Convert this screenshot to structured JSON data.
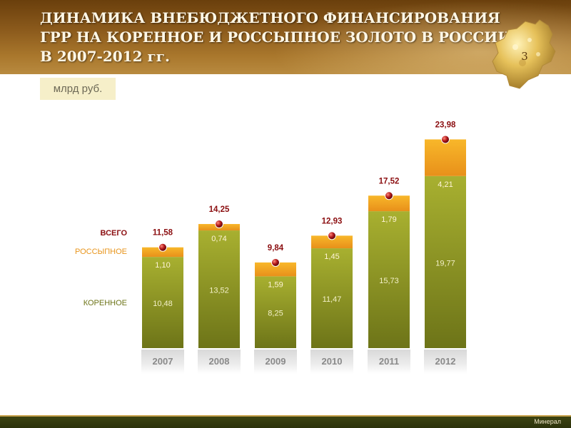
{
  "header": {
    "title_lines": [
      "ДИНАМИКА ВНЕБЮДЖЕТНОГО ФИНАНСИРОВАНИЯ",
      "ГРР НА КОРЕННОЕ И РОССЫПНОЕ ЗОЛОТО В РОССИИ",
      "В 2007-2012 гг."
    ],
    "slide_number": "3"
  },
  "unit_label": "млрд руб.",
  "legend": {
    "total": "ВСЕГО",
    "placer": "РОССЫПНОЕ",
    "primary": "КОРЕННОЕ"
  },
  "footer": {
    "text": "Минерал"
  },
  "colors": {
    "primary_bar": "#9aa22c",
    "placer_bar": "#f2a51a",
    "total_label": "#8b0e10",
    "header_brown": "#8b5a1c",
    "footer_olive": "#3d4412"
  },
  "chart_data": {
    "type": "bar",
    "stacked": true,
    "categories": [
      "2007",
      "2008",
      "2009",
      "2010",
      "2011",
      "2012"
    ],
    "series": [
      {
        "name": "КОРЕННОЕ",
        "values": [
          10.48,
          13.52,
          8.25,
          11.47,
          15.73,
          19.77
        ],
        "labels": [
          "10,48",
          "13,52",
          "8,25",
          "11,47",
          "15,73",
          "19,77"
        ]
      },
      {
        "name": "РОССЫПНОЕ",
        "values": [
          1.1,
          0.74,
          1.59,
          1.45,
          1.79,
          4.21
        ],
        "labels": [
          "1,10",
          "0,74",
          "1,59",
          "1,45",
          "1,79",
          "4,21"
        ]
      }
    ],
    "totals": {
      "name": "ВСЕГО",
      "values": [
        11.58,
        14.25,
        9.84,
        12.93,
        17.52,
        23.98
      ],
      "labels": [
        "11,58",
        "14,25",
        "9,84",
        "12,93",
        "17,52",
        "23,98"
      ]
    },
    "ylim": [
      0,
      24
    ],
    "grid": false,
    "legend_position": "left"
  }
}
